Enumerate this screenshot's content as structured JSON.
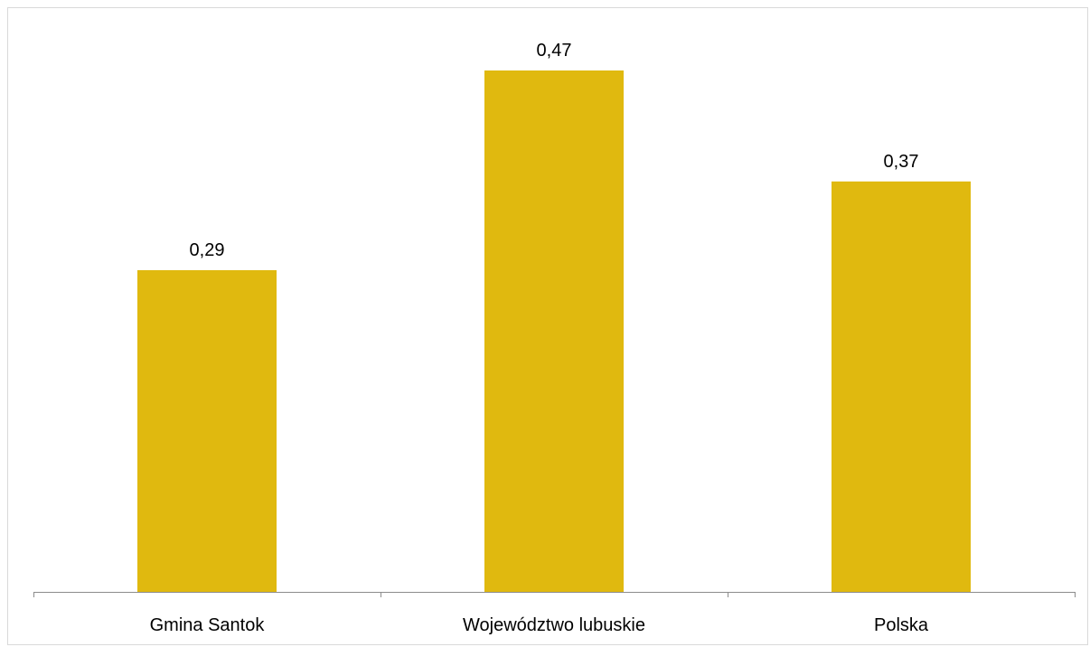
{
  "chart_data": {
    "type": "bar",
    "categories": [
      "Gmina Santok",
      "Województwo lubuskie",
      "Polska"
    ],
    "values": [
      0.29,
      0.47,
      0.37
    ],
    "value_labels": [
      "0,29",
      "0,47",
      "0,37"
    ],
    "title": "",
    "xlabel": "",
    "ylabel": "",
    "ylim": [
      0,
      0.5
    ],
    "grid": false,
    "legend": "none",
    "bar_color": "#E0B90F",
    "axis_color": "#8c8c8c"
  }
}
